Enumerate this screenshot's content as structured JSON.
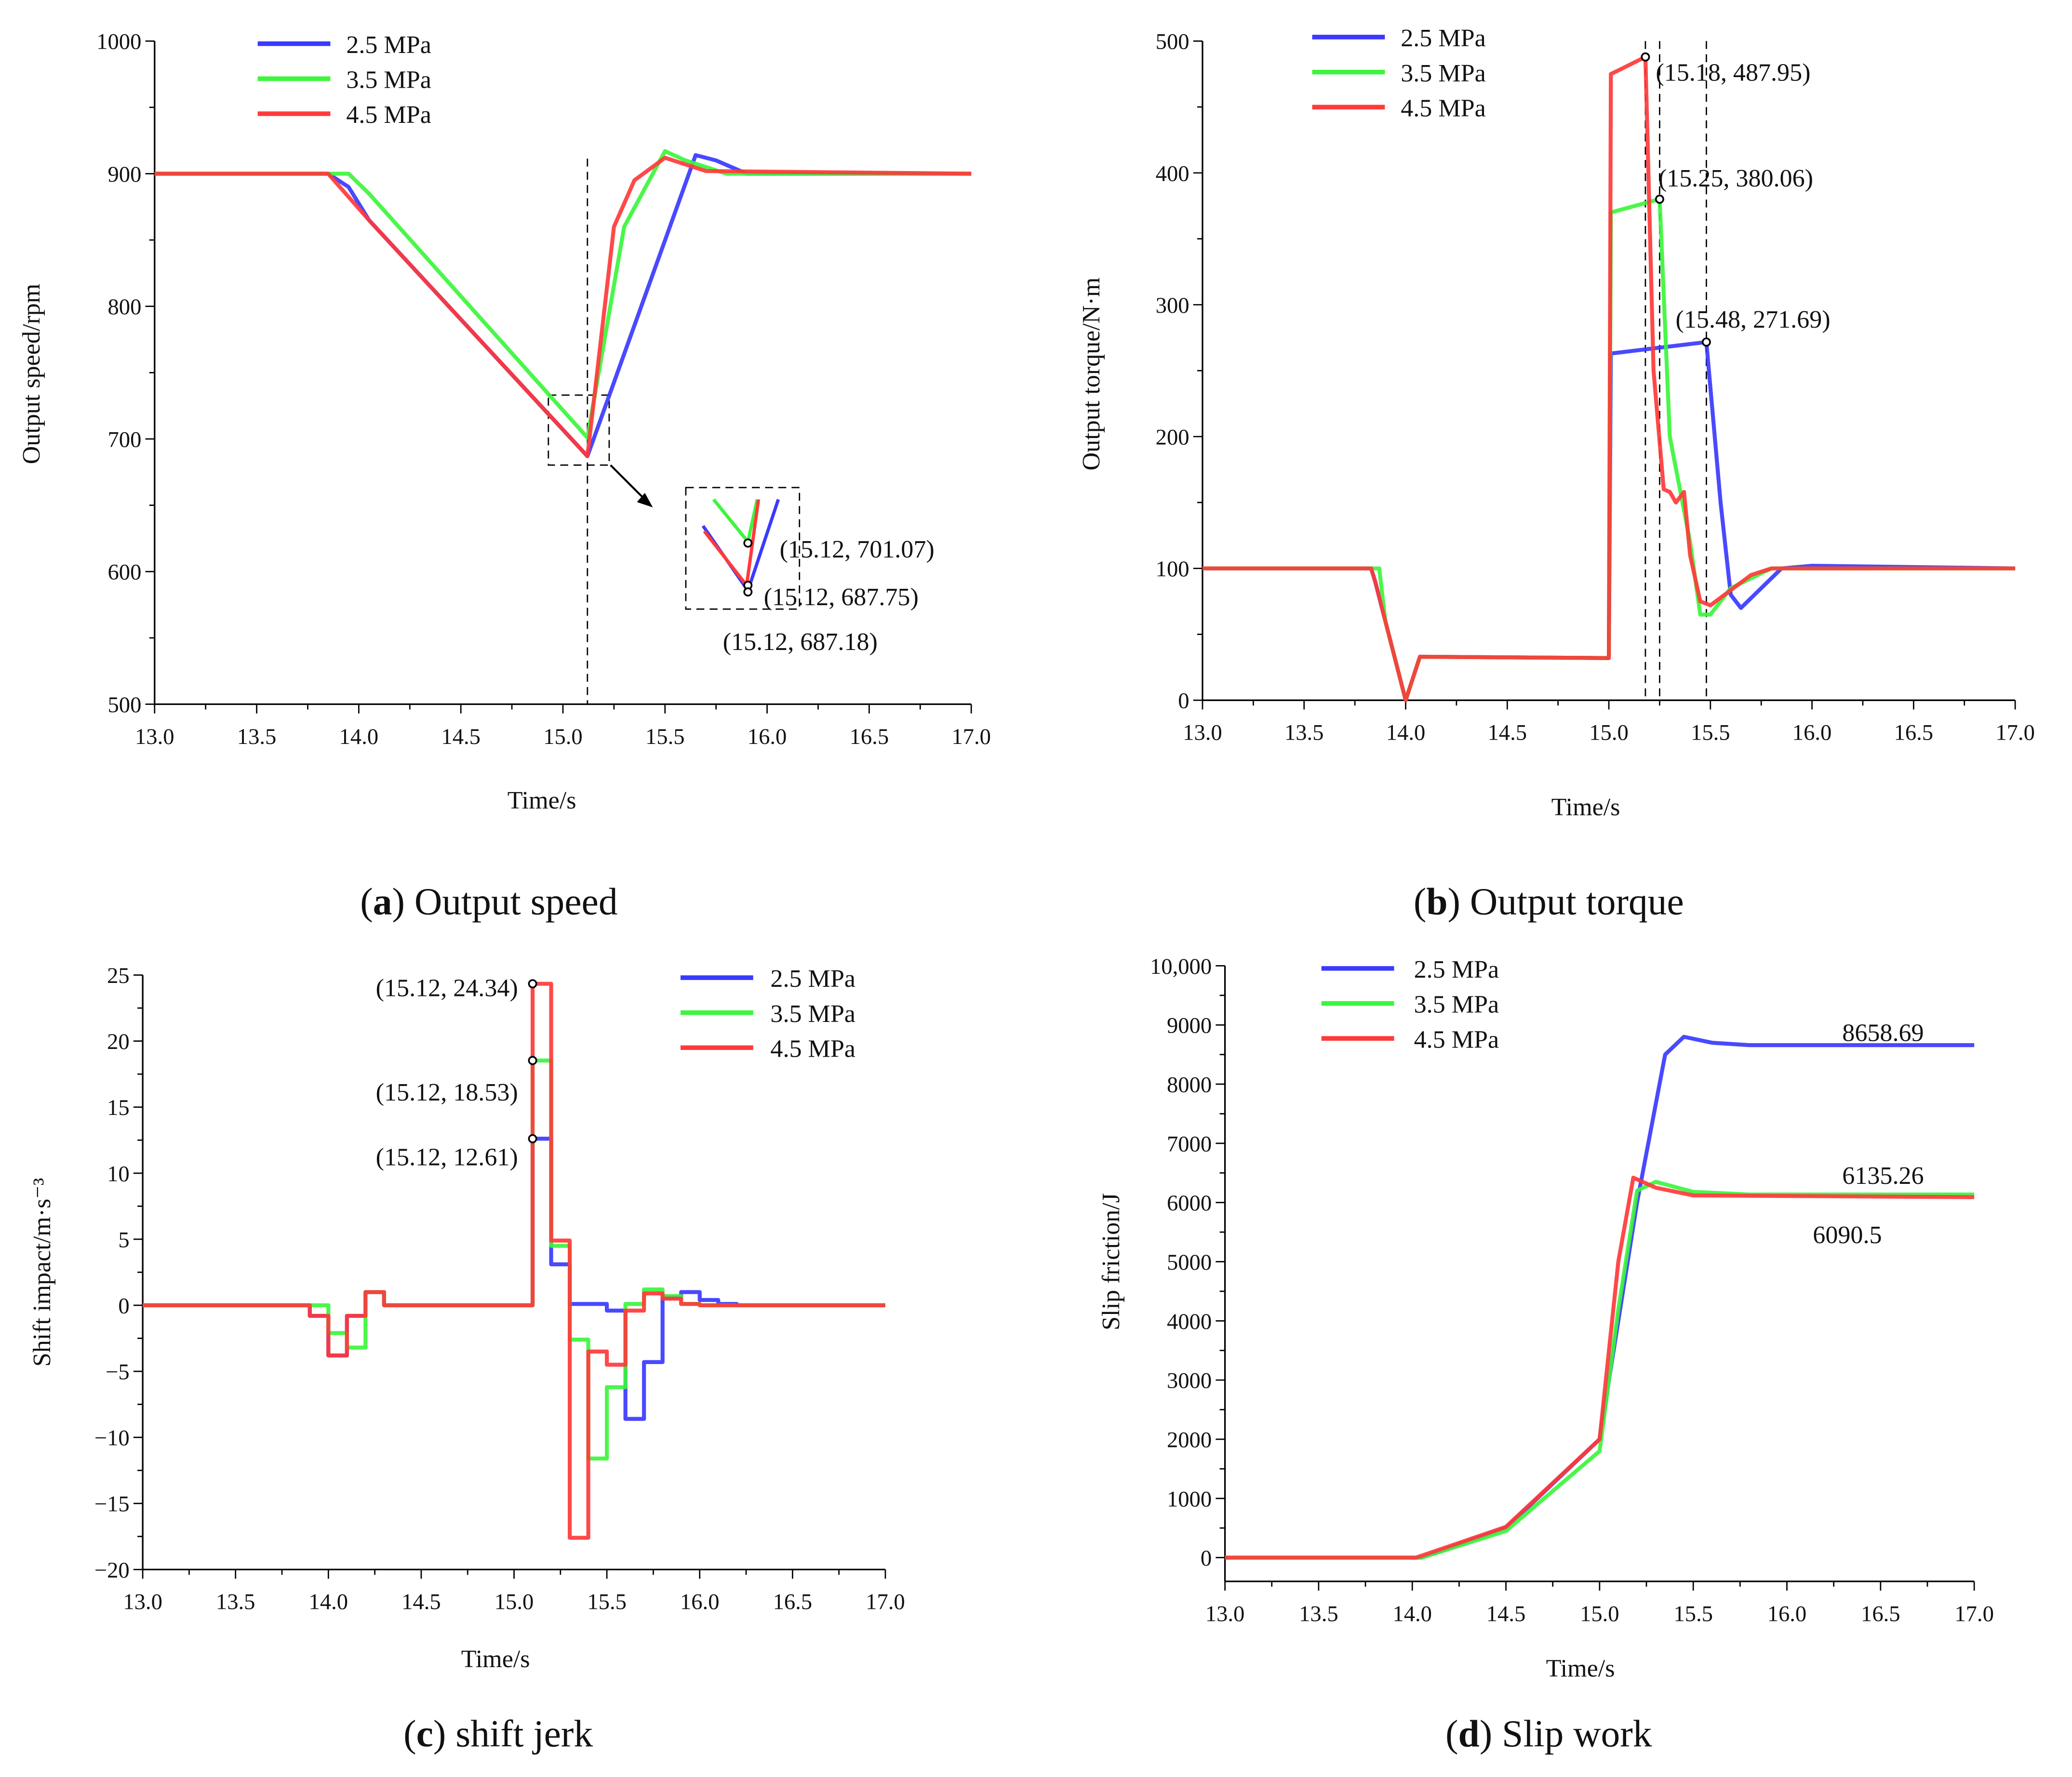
{
  "colors": {
    "s25": "#3a3aff",
    "s35": "#3cf53c",
    "s45": "#ff3a3a"
  },
  "chart_data": [
    {
      "type": "line",
      "caption_letter": "a",
      "caption_text": " Output speed",
      "xlabel": "Time/s",
      "ylabel": "Output speed/rpm",
      "xlim": [
        13,
        17
      ],
      "ylim": [
        500,
        1000
      ],
      "xticks": [
        "13.0",
        "13.5",
        "14.0",
        "14.5",
        "15.0",
        "15.5",
        "16.0",
        "16.5",
        "17.0"
      ],
      "yticks": [
        "500",
        "600",
        "700",
        "800",
        "900",
        "1000"
      ],
      "legend": [
        "2.5 MPa",
        "3.5 MPa",
        "4.5 MPa"
      ],
      "series": [
        {
          "name": "2.5 MPa",
          "points": [
            [
              13,
              900
            ],
            [
              13.85,
              900
            ],
            [
              13.95,
              890
            ],
            [
              14.05,
              865
            ],
            [
              15.12,
              687
            ],
            [
              15.65,
              914
            ],
            [
              15.75,
              910
            ],
            [
              15.9,
              900
            ],
            [
              17,
              900
            ]
          ]
        },
        {
          "name": "3.5 MPa",
          "points": [
            [
              13,
              900
            ],
            [
              13.95,
              900
            ],
            [
              14.05,
              885
            ],
            [
              15.12,
              701
            ],
            [
              15.3,
              860
            ],
            [
              15.5,
              917
            ],
            [
              15.6,
              910
            ],
            [
              15.8,
              900
            ],
            [
              17,
              900
            ]
          ]
        },
        {
          "name": "4.5 MPa",
          "points": [
            [
              13,
              900
            ],
            [
              13.85,
              900
            ],
            [
              14.05,
              865
            ],
            [
              15.12,
              687
            ],
            [
              15.25,
              860
            ],
            [
              15.35,
              895
            ],
            [
              15.5,
              912
            ],
            [
              15.7,
              902
            ],
            [
              17,
              900
            ]
          ]
        }
      ],
      "annotations": [
        "(15.12, 701.07)",
        "(15.12, 687.75)",
        "(15.12, 687.18)"
      ]
    },
    {
      "type": "line",
      "caption_letter": "b",
      "caption_text": " Output torque",
      "xlabel": "Time/s",
      "ylabel": "Output torque/N·m",
      "xlim": [
        13,
        17
      ],
      "ylim": [
        -20,
        500
      ],
      "xticks": [
        "13.0",
        "13.5",
        "14.0",
        "14.5",
        "15.0",
        "15.5",
        "16.0",
        "16.5",
        "17.0"
      ],
      "yticks": [
        "0",
        "100",
        "200",
        "300",
        "400",
        "500"
      ],
      "legend": [
        "2.5 MPa",
        "3.5 MPa",
        "4.5 MPa"
      ],
      "series": [
        {
          "name": "2.5 MPa",
          "points": [
            [
              13,
              100
            ],
            [
              13.83,
              100
            ],
            [
              13.85,
              90
            ],
            [
              14,
              0
            ],
            [
              14.07,
              33
            ],
            [
              15,
              32
            ],
            [
              15.01,
              263
            ],
            [
              15.48,
              271.69
            ],
            [
              15.55,
              150
            ],
            [
              15.6,
              80
            ],
            [
              15.65,
              70
            ],
            [
              15.75,
              85
            ],
            [
              15.85,
              100
            ],
            [
              16,
              102
            ],
            [
              17,
              100
            ]
          ]
        },
        {
          "name": "3.5 MPa",
          "points": [
            [
              13,
              100
            ],
            [
              13.87,
              100
            ],
            [
              13.9,
              60
            ],
            [
              14,
              0
            ],
            [
              14.07,
              33
            ],
            [
              15,
              32
            ],
            [
              15.01,
              370
            ],
            [
              15.25,
              380.06
            ],
            [
              15.3,
              200
            ],
            [
              15.4,
              120
            ],
            [
              15.45,
              65
            ],
            [
              15.5,
              65
            ],
            [
              15.6,
              85
            ],
            [
              15.8,
              100
            ],
            [
              17,
              100
            ]
          ]
        },
        {
          "name": "4.5 MPa",
          "points": [
            [
              13,
              100
            ],
            [
              13.83,
              100
            ],
            [
              13.85,
              90
            ],
            [
              14,
              0
            ],
            [
              14.07,
              33
            ],
            [
              15,
              32
            ],
            [
              15.01,
              475
            ],
            [
              15.05,
              478
            ],
            [
              15.18,
              487.95
            ],
            [
              15.22,
              250
            ],
            [
              15.27,
              160
            ],
            [
              15.3,
              158
            ],
            [
              15.33,
              150
            ],
            [
              15.37,
              158
            ],
            [
              15.4,
              110
            ],
            [
              15.45,
              75
            ],
            [
              15.5,
              72
            ],
            [
              15.7,
              95
            ],
            [
              15.8,
              100
            ],
            [
              17,
              100
            ]
          ]
        }
      ],
      "annotations": [
        "(15.18, 487.95)",
        "(15.25, 380.06)",
        "(15.48, 271.69)"
      ],
      "markers": [
        [
          15.18,
          487.95
        ],
        [
          15.25,
          380.06
        ],
        [
          15.48,
          271.69
        ]
      ]
    },
    {
      "type": "line",
      "caption_letter": "c",
      "caption_text": " shift jerk",
      "xlabel": "Time/s",
      "ylabel": "Shift impact/m·s⁻³",
      "xlim": [
        13,
        17
      ],
      "ylim": [
        -20,
        25
      ],
      "xticks": [
        "13.0",
        "13.5",
        "14.0",
        "14.5",
        "15.0",
        "15.5",
        "16.0",
        "16.5",
        "17.0"
      ],
      "yticks": [
        "−20",
        "−15",
        "−10",
        "−5",
        "0",
        "5",
        "10",
        "15",
        "20",
        "25"
      ],
      "legend": [
        "2.5 MPa",
        "3.5 MPa",
        "4.5 MPa"
      ],
      "series": [
        {
          "name": "2.5 MPa",
          "steps": [
            [
              13,
              0
            ],
            [
              13.9,
              -0.8
            ],
            [
              14.0,
              -3.8
            ],
            [
              14.1,
              -0.8
            ],
            [
              14.2,
              1
            ],
            [
              14.3,
              0
            ],
            [
              15.1,
              12.61
            ],
            [
              15.2,
              3.1
            ],
            [
              15.3,
              0.1
            ],
            [
              15.5,
              -0.4
            ],
            [
              15.6,
              -8.6
            ],
            [
              15.7,
              -4.3
            ],
            [
              15.8,
              0.6
            ],
            [
              15.9,
              1.0
            ],
            [
              16.0,
              0.4
            ],
            [
              16.1,
              0.1
            ],
            [
              16.2,
              0
            ],
            [
              17,
              0
            ]
          ]
        },
        {
          "name": "3.5 MPa",
          "steps": [
            [
              13,
              0
            ],
            [
              14.0,
              -2.1
            ],
            [
              14.1,
              -3.2
            ],
            [
              14.2,
              1
            ],
            [
              14.3,
              0
            ],
            [
              15.1,
              18.53
            ],
            [
              15.2,
              4.5
            ],
            [
              15.3,
              -2.6
            ],
            [
              15.4,
              -11.6
            ],
            [
              15.5,
              -6.2
            ],
            [
              15.6,
              0.1
            ],
            [
              15.7,
              1.2
            ],
            [
              15.8,
              0.7
            ],
            [
              15.9,
              0.1
            ],
            [
              16.0,
              0
            ],
            [
              17,
              0
            ]
          ]
        },
        {
          "name": "4.5 MPa",
          "steps": [
            [
              13,
              0
            ],
            [
              13.9,
              -0.8
            ],
            [
              14.0,
              -3.8
            ],
            [
              14.1,
              -0.8
            ],
            [
              14.2,
              1
            ],
            [
              14.3,
              0
            ],
            [
              15.1,
              24.34
            ],
            [
              15.2,
              4.9
            ],
            [
              15.3,
              -17.6
            ],
            [
              15.4,
              -3.5
            ],
            [
              15.5,
              -4.5
            ],
            [
              15.6,
              -0.4
            ],
            [
              15.7,
              0.9
            ],
            [
              15.8,
              0.5
            ],
            [
              15.9,
              0.1
            ],
            [
              16.0,
              0
            ],
            [
              17,
              0
            ]
          ]
        }
      ],
      "annotations": [
        "(15.12, 24.34)",
        "(15.12, 18.53)",
        "(15.12, 12.61)"
      ],
      "markers": [
        [
          15.1,
          24.34
        ],
        [
          15.1,
          18.53
        ],
        [
          15.1,
          12.61
        ]
      ]
    },
    {
      "type": "line",
      "caption_letter": "d",
      "caption_text": " Slip work",
      "xlabel": "Time/s",
      "ylabel": "Slip friction/J",
      "xlim": [
        13,
        17
      ],
      "ylim": [
        0,
        10000
      ],
      "xticks": [
        "13.0",
        "13.5",
        "14.0",
        "14.5",
        "15.0",
        "15.5",
        "16.0",
        "16.5",
        "17.0"
      ],
      "yticks": [
        "0",
        "1000",
        "2000",
        "3000",
        "4000",
        "5000",
        "6000",
        "7000",
        "8000",
        "9000",
        "10,000"
      ],
      "legend": [
        "2.5 MPa",
        "3.5 MPa",
        "4.5 MPa"
      ],
      "series": [
        {
          "name": "2.5 MPa",
          "points": [
            [
              13,
              0
            ],
            [
              14.05,
              0
            ],
            [
              14.5,
              500
            ],
            [
              15,
              2000
            ],
            [
              15.2,
              6000
            ],
            [
              15.35,
              8500
            ],
            [
              15.45,
              8800
            ],
            [
              15.6,
              8700
            ],
            [
              15.8,
              8658.69
            ],
            [
              17,
              8658.69
            ]
          ]
        },
        {
          "name": "3.5 MPa",
          "points": [
            [
              13,
              0
            ],
            [
              14.05,
              0
            ],
            [
              14.5,
              450
            ],
            [
              15,
              1800
            ],
            [
              15.1,
              4200
            ],
            [
              15.2,
              6200
            ],
            [
              15.3,
              6350
            ],
            [
              15.5,
              6180
            ],
            [
              15.8,
              6135.26
            ],
            [
              17,
              6135.26
            ]
          ]
        },
        {
          "name": "4.5 MPa",
          "points": [
            [
              13,
              0
            ],
            [
              14.02,
              0
            ],
            [
              14.5,
              520
            ],
            [
              15,
              2000
            ],
            [
              15.1,
              5000
            ],
            [
              15.18,
              6420
            ],
            [
              15.3,
              6250
            ],
            [
              15.5,
              6120
            ],
            [
              17,
              6090.5
            ]
          ]
        }
      ],
      "annotations": [
        "8658.69",
        "6135.26",
        "6090.5"
      ]
    }
  ]
}
